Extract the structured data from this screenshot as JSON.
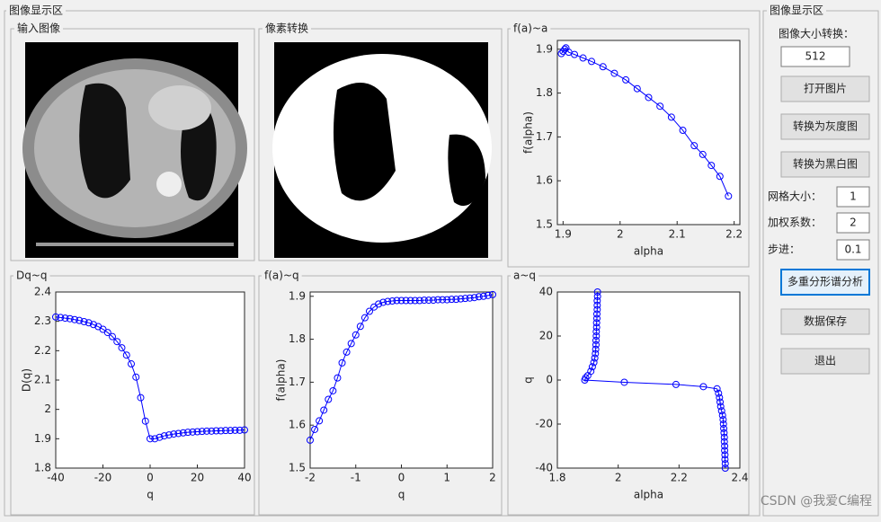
{
  "panels": {
    "main": "图像显示区",
    "input_image": "输入图像",
    "pixel_convert": "像素转换",
    "side": "图像显示区"
  },
  "controls": {
    "size_label": "图像大小转换：",
    "size_value": 512,
    "open_button": "打开图片",
    "gray_button": "转换为灰度图",
    "bw_button": "转换为黑白图",
    "grid_label": "网格大小：",
    "grid_value": 1,
    "weight_label": "加权系数：",
    "weight_value": 2,
    "step_label": "步进：",
    "step_value": 0.1,
    "analyze_button": "多重分形谱分析",
    "save_button": "数据保存",
    "exit_button": "退出"
  },
  "watermark": "CSDN @我爱C编程",
  "chart_data": [
    {
      "type": "line",
      "title": "f(a)~a",
      "x_label": "alpha",
      "y_label": "f(alpha)",
      "x": [
        1.897,
        1.9,
        1.903,
        1.905,
        1.91,
        1.92,
        1.935,
        1.95,
        1.97,
        1.99,
        2.01,
        2.03,
        2.05,
        2.07,
        2.09,
        2.11,
        2.13,
        2.145,
        2.16,
        2.175,
        2.19
      ],
      "series": [
        {
          "color": "#0000ff",
          "values": [
            1.89,
            1.895,
            1.9,
            1.903,
            1.893,
            1.888,
            1.88,
            1.872,
            1.86,
            1.845,
            1.83,
            1.81,
            1.79,
            1.77,
            1.745,
            1.715,
            1.68,
            1.66,
            1.635,
            1.61,
            1.565
          ]
        }
      ],
      "xlim": [
        1.89,
        2.21
      ],
      "xticks": [
        1.9,
        2,
        2.1,
        2.2
      ],
      "ylim": [
        1.5,
        1.92
      ],
      "yticks": [
        1.5,
        1.6,
        1.7,
        1.8,
        1.9
      ]
    },
    {
      "type": "line",
      "title": "Dq~q",
      "x_label": "q",
      "y_label": "D(q)",
      "x": [
        -40,
        -38,
        -36,
        -34,
        -32,
        -30,
        -28,
        -26,
        -24,
        -22,
        -20,
        -18,
        -16,
        -14,
        -12,
        -10,
        -8,
        -6,
        -4,
        -2,
        0,
        2,
        4,
        6,
        8,
        10,
        12,
        14,
        16,
        18,
        20,
        22,
        24,
        26,
        28,
        30,
        32,
        34,
        36,
        38,
        40
      ],
      "series": [
        {
          "color": "#0000ff",
          "values": [
            2.315,
            2.313,
            2.311,
            2.309,
            2.306,
            2.303,
            2.299,
            2.295,
            2.289,
            2.282,
            2.273,
            2.262,
            2.248,
            2.231,
            2.21,
            2.185,
            2.155,
            2.11,
            2.04,
            1.96,
            1.9,
            1.9,
            1.905,
            1.91,
            1.913,
            1.916,
            1.918,
            1.92,
            1.922,
            1.923,
            1.924,
            1.925,
            1.926,
            1.926,
            1.927,
            1.927,
            1.928,
            1.928,
            1.929,
            1.929,
            1.93
          ]
        }
      ],
      "xlim": [
        -40,
        40
      ],
      "xticks": [
        -40,
        -20,
        0,
        20,
        40
      ],
      "ylim": [
        1.8,
        2.4
      ],
      "yticks": [
        1.8,
        1.9,
        2,
        2.1,
        2.2,
        2.3,
        2.4
      ]
    },
    {
      "type": "line",
      "title": "f(a)~q",
      "x_label": "q",
      "y_label": "f(alpha)",
      "x": [
        -2,
        -1.9,
        -1.8,
        -1.7,
        -1.6,
        -1.5,
        -1.4,
        -1.3,
        -1.2,
        -1.1,
        -1,
        -0.9,
        -0.8,
        -0.7,
        -0.6,
        -0.5,
        -0.4,
        -0.3,
        -0.2,
        -0.1,
        0,
        0.1,
        0.2,
        0.3,
        0.4,
        0.5,
        0.6,
        0.7,
        0.8,
        0.9,
        1,
        1.1,
        1.2,
        1.3,
        1.4,
        1.5,
        1.6,
        1.7,
        1.8,
        1.9,
        2
      ],
      "series": [
        {
          "color": "#0000ff",
          "values": [
            1.565,
            1.59,
            1.61,
            1.635,
            1.66,
            1.68,
            1.71,
            1.745,
            1.77,
            1.79,
            1.81,
            1.83,
            1.85,
            1.865,
            1.875,
            1.882,
            1.886,
            1.888,
            1.889,
            1.89,
            1.89,
            1.89,
            1.89,
            1.89,
            1.89,
            1.891,
            1.891,
            1.891,
            1.892,
            1.892,
            1.892,
            1.893,
            1.893,
            1.894,
            1.895,
            1.896,
            1.897,
            1.899,
            1.9,
            1.902,
            1.904
          ]
        }
      ],
      "xlim": [
        -2,
        2
      ],
      "xticks": [
        -2,
        -1,
        0,
        1,
        2
      ],
      "ylim": [
        1.5,
        1.91
      ],
      "yticks": [
        1.5,
        1.6,
        1.7,
        1.8,
        1.9
      ]
    },
    {
      "type": "line",
      "title": "a~q",
      "x_label": "alpha",
      "y_label": "q",
      "x": [
        2.352,
        2.352,
        2.351,
        2.351,
        2.35,
        2.35,
        2.349,
        2.349,
        2.348,
        2.347,
        2.346,
        2.345,
        2.343,
        2.34,
        2.337,
        2.335,
        2.333,
        2.33,
        2.325,
        2.28,
        2.19,
        2.02,
        1.89,
        1.893,
        1.9,
        1.91,
        1.915,
        1.92,
        1.923,
        1.925,
        1.926,
        1.927,
        1.927,
        1.928,
        1.928,
        1.929,
        1.929,
        1.93,
        1.93,
        1.931,
        1.931,
        1.931,
        1.932,
        1.932
      ],
      "series": [
        {
          "color": "#0000ff",
          "values": [
            -40,
            -38,
            -36,
            -34,
            -32,
            -30,
            -28,
            -26,
            -24,
            -22,
            -20,
            -18,
            -16,
            -14,
            -12,
            -10,
            -8,
            -6,
            -4,
            -3,
            -2,
            -1,
            0,
            1,
            2,
            4,
            6,
            8,
            10,
            12,
            14,
            16,
            18,
            20,
            22,
            24,
            26,
            28,
            30,
            32,
            34,
            36,
            38,
            40
          ]
        }
      ],
      "xlim": [
        1.8,
        2.4
      ],
      "xticks": [
        1.8,
        2,
        2.2,
        2.4
      ],
      "ylim": [
        -40,
        40
      ],
      "yticks": [
        -40,
        -20,
        0,
        20,
        40
      ]
    }
  ]
}
